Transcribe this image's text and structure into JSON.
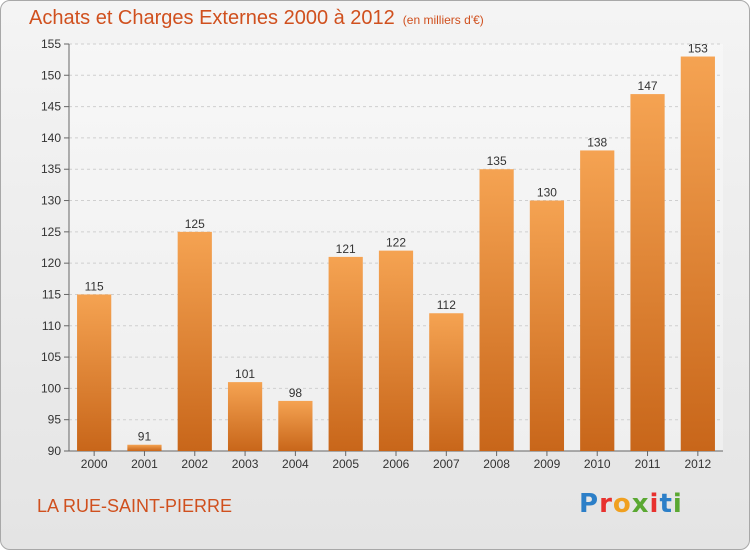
{
  "header": {
    "title": "Achats et Charges Externes 2000 à 2012",
    "subtitle": "(en milliers d'€)"
  },
  "footer": {
    "commune": "LA RUE-SAINT-PIERRE",
    "brand_letters": [
      "P",
      "r",
      "o",
      "x",
      "i",
      "t",
      "i"
    ],
    "brand_colors": [
      "#2c7fc8",
      "#e8312e",
      "#f0a020",
      "#5aa832",
      "#e8312e",
      "#2c7fc8",
      "#5aa832"
    ]
  },
  "chart_data": {
    "type": "bar",
    "categories": [
      "2000",
      "2001",
      "2002",
      "2003",
      "2004",
      "2005",
      "2006",
      "2007",
      "2008",
      "2009",
      "2010",
      "2011",
      "2012"
    ],
    "values": [
      115,
      91,
      125,
      101,
      98,
      121,
      122,
      112,
      135,
      130,
      138,
      147,
      153
    ],
    "ylim": [
      90,
      155
    ],
    "yticks": [
      90,
      95,
      100,
      105,
      110,
      115,
      120,
      125,
      130,
      135,
      140,
      145,
      150,
      155
    ],
    "grid": true,
    "bar_color_top": "#f5a352",
    "bar_color_bottom": "#c8661a",
    "text_color": "#333333",
    "accent_color": "#d0501e"
  }
}
